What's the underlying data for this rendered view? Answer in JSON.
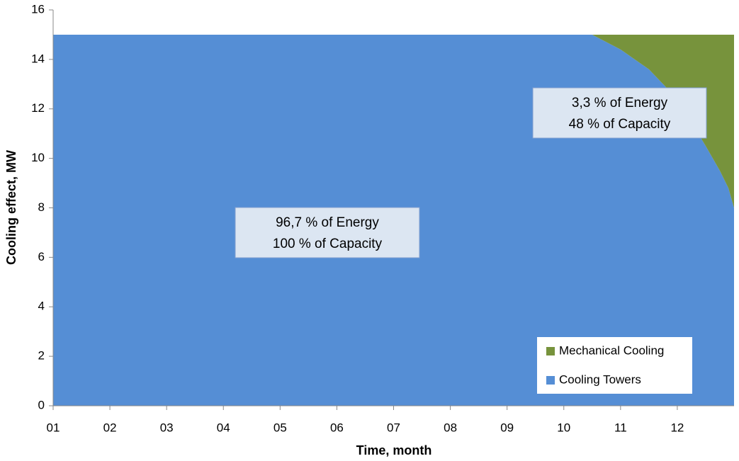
{
  "chart_data": {
    "type": "stacked_area",
    "x_label": "Time, month",
    "y_label": "Cooling effect, MW",
    "x": [
      1,
      10.5,
      11,
      11.5,
      12,
      12.5,
      12.75,
      12.9,
      13
    ],
    "series": [
      {
        "name": "Cooling Towers",
        "color": "#558ed5",
        "values": [
          15,
          15,
          14.4,
          13.6,
          12.4,
          10.5,
          9.5,
          8.8,
          8.0
        ]
      },
      {
        "name": "Mechanical Cooling",
        "color": "#77933c",
        "values": [
          0,
          0,
          0.6,
          1.4,
          2.6,
          4.5,
          5.5,
          6.2,
          7.0
        ]
      }
    ],
    "xlim": [
      1,
      13
    ],
    "xticks": [
      {
        "value": 1,
        "label": "01"
      },
      {
        "value": 2,
        "label": "02"
      },
      {
        "value": 3,
        "label": "03"
      },
      {
        "value": 4,
        "label": "04"
      },
      {
        "value": 5,
        "label": "05"
      },
      {
        "value": 6,
        "label": "06"
      },
      {
        "value": 7,
        "label": "07"
      },
      {
        "value": 8,
        "label": "08"
      },
      {
        "value": 9,
        "label": "09"
      },
      {
        "value": 10,
        "label": "10"
      },
      {
        "value": 11,
        "label": "11"
      },
      {
        "value": 12,
        "label": "12"
      }
    ],
    "ylim": [
      0,
      16
    ],
    "yticks": [
      0,
      2,
      4,
      6,
      8,
      10,
      12,
      14,
      16
    ],
    "grid": false,
    "legend": "lower right",
    "annotations": [
      {
        "lines": [
          "96,7 % of Energy",
          "100 % of Capacity"
        ]
      },
      {
        "lines": [
          "3,3 % of Energy",
          "48 % of Capacity"
        ]
      }
    ]
  }
}
